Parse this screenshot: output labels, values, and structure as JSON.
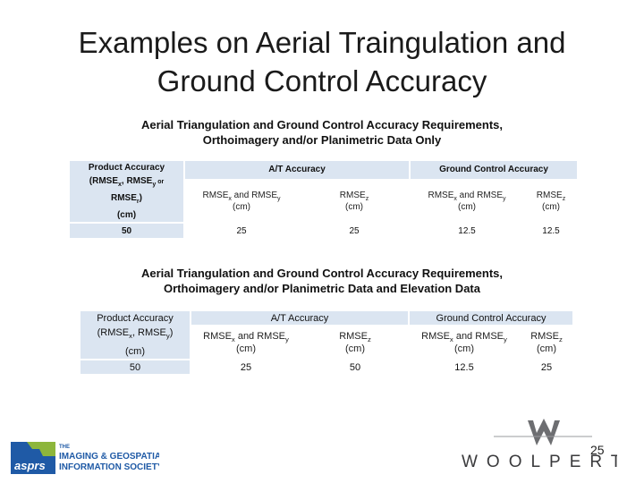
{
  "slide": {
    "title_line1": "Examples on Aerial Traingulation and",
    "title_line2": "Ground Control Accuracy",
    "page_number": "25"
  },
  "table1": {
    "caption_line1": "Aerial Triangulation and Ground Control Accuracy Requirements,",
    "caption_line2": "Orthoimagery and/or Planimetric Data Only",
    "product_accuracy": {
      "line1": "Product Accuracy",
      "line2_a": "(RMSE",
      "line2_sub_x": "x",
      "line2_b": ", RMSE",
      "line2_sub_y": "y",
      "line2_c": " or",
      "line3_a": "RMSE",
      "line3_sub_r": "r",
      "line3_b": ")",
      "line4": "(cm)"
    },
    "at_header": "A/T Accuracy",
    "gc_header": "Ground Control Accuracy",
    "columns": {
      "at_xy": {
        "a": "RMSE",
        "sub_x": "x",
        "b": " and RMSE",
        "sub_y": "y",
        "unit": "(cm)"
      },
      "at_z": {
        "a": "RMSE",
        "sub_z": "z",
        "unit": "(cm)"
      },
      "gc_xy": {
        "a": "RMSE",
        "sub_x": "x",
        "b": " and RMSE",
        "sub_y": "y",
        "unit": "(cm)"
      },
      "gc_z": {
        "a": "RMSE",
        "sub_z": "z",
        "unit": "(cm)"
      }
    },
    "row": {
      "product": "50",
      "at_xy": "25",
      "at_z": "25",
      "gc_xy": "12.5",
      "gc_z": "12.5"
    }
  },
  "table2": {
    "caption_line1": "Aerial Triangulation and Ground Control Accuracy Requirements,",
    "caption_line2": "Orthoimagery and/or Planimetric Data and Elevation Data",
    "product_accuracy": {
      "line1": "Product Accuracy",
      "line2_a": "(RMSE",
      "line2_sub_x": "x",
      "line2_b": ", RMSE",
      "line2_sub_y": "y",
      "line2_c": ")",
      "line3": "(cm)"
    },
    "at_header": "A/T Accuracy",
    "gc_header": "Ground Control Accuracy",
    "columns": {
      "at_xy": {
        "a": "RMSE",
        "sub_x": "x",
        "b": " and RMSE",
        "sub_y": "y",
        "unit": "(cm)"
      },
      "at_z": {
        "a": "RMSE",
        "sub_z": "z",
        "unit": "(cm)"
      },
      "gc_xy": {
        "a": "RMSE",
        "sub_x": "x",
        "b": " and RMSE",
        "sub_y": "y",
        "unit": "(cm)"
      },
      "gc_z": {
        "a": "RMSE",
        "sub_z": "z",
        "unit": "(cm)"
      }
    },
    "row": {
      "product": "50",
      "at_xy": "25",
      "at_z": "50",
      "gc_xy": "12.5",
      "gc_z": "25"
    }
  },
  "logos": {
    "asprs_mark": "asprs",
    "asprs_line1": "THE",
    "asprs_line2": "IMAGING & GEOSPATIAL",
    "asprs_line3": "INFORMATION SOCIETY",
    "woolpert_wordmark": "WOOLPERT"
  },
  "colors": {
    "header_fill": "#dbe5f1",
    "cell_fill": "#eef2f8",
    "asprs_blue": "#1f5aa6",
    "asprs_green": "#8db63c",
    "woolpert_gray": "#6d6e71"
  }
}
